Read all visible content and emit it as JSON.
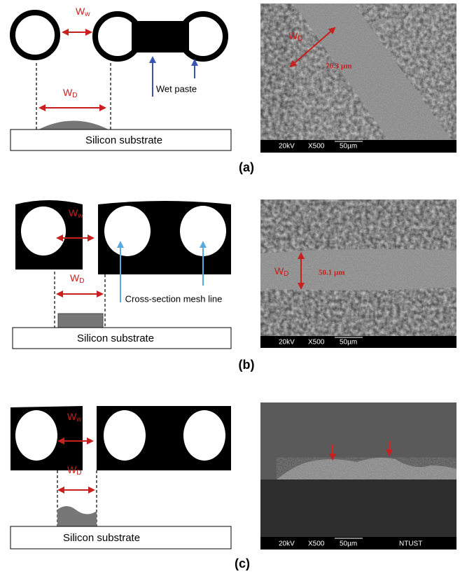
{
  "panels": [
    {
      "label": "(a)",
      "diagram": {
        "gap_width": {
          "main": "W",
          "sub": "w"
        },
        "deposit_width": {
          "main": "W",
          "sub": "D"
        },
        "annotation": "Wet paste",
        "substrate": "Silicon substrate"
      },
      "sem": {
        "width_label": {
          "main": "W",
          "sub": "D"
        },
        "measurement": "76.3 µm",
        "scale_bar": {
          "voltage": "20kV",
          "magnification": "X500",
          "scale": "50µm"
        }
      }
    },
    {
      "label": "(b)",
      "diagram": {
        "gap_width": {
          "main": "W",
          "sub": "w"
        },
        "deposit_width": {
          "main": "W",
          "sub": "D"
        },
        "annotation": "Cross-section mesh line",
        "substrate": "Silicon substrate"
      },
      "sem": {
        "width_label": {
          "main": "W",
          "sub": "D"
        },
        "measurement": "50.1 µm",
        "scale_bar": {
          "voltage": "20kV",
          "magnification": "X500",
          "scale": "50µm"
        }
      }
    },
    {
      "label": "(c)",
      "diagram": {
        "gap_width": {
          "main": "W",
          "sub": "w"
        },
        "deposit_width": {
          "main": "W",
          "sub": "D"
        },
        "substrate": "Silicon substrate"
      },
      "sem": {
        "scale_bar": {
          "voltage": "20kV",
          "magnification": "X500",
          "scale": "50µm",
          "institution": "NTUST"
        }
      }
    }
  ]
}
